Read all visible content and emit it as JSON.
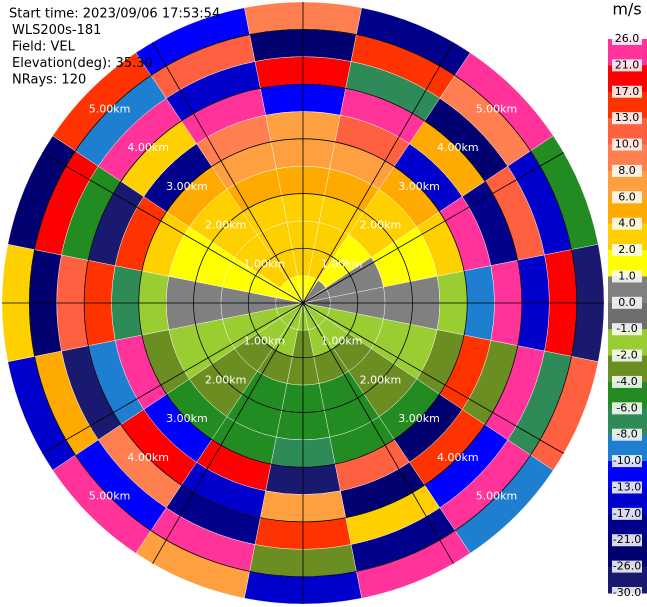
{
  "chart_data": {
    "type": "ppi",
    "header": [
      "Start time: 2023/09/06 17:53:54",
      "WLS200s-181",
      "Field: VEL",
      "Elevation(deg): 35.30",
      "NRays: 120"
    ],
    "colorbar_title": "m/s",
    "colorbar_ticks": [
      {
        "value": 26,
        "label": "26.0"
      },
      {
        "value": 21,
        "label": "21.0"
      },
      {
        "value": 17,
        "label": "17.0"
      },
      {
        "value": 13,
        "label": "13.0"
      },
      {
        "value": 10,
        "label": "10.0"
      },
      {
        "value": 8,
        "label": "8.0"
      },
      {
        "value": 6,
        "label": "6.0"
      },
      {
        "value": 4,
        "label": "4.0"
      },
      {
        "value": 2,
        "label": "2.0"
      },
      {
        "value": 1,
        "label": "1.0"
      },
      {
        "value": 0,
        "label": "0.0"
      },
      {
        "value": -1,
        "label": "-1.0"
      },
      {
        "value": -2,
        "label": "-2.0"
      },
      {
        "value": -4,
        "label": "-4.0"
      },
      {
        "value": -6,
        "label": "-6.0"
      },
      {
        "value": -8,
        "label": "-8.0"
      },
      {
        "value": -10,
        "label": "-10.0"
      },
      {
        "value": -13,
        "label": "-13.0"
      },
      {
        "value": -17,
        "label": "-17.0"
      },
      {
        "value": -21,
        "label": "-21.0"
      },
      {
        "value": -26,
        "label": "-26.0"
      },
      {
        "value": -30,
        "label": "-30.0"
      }
    ],
    "colors": [
      "#ff3399",
      "#ff0000",
      "#ff3300",
      "#ff6040",
      "#ff7f50",
      "#ffa040",
      "#ffaa00",
      "#ffd000",
      "#ffff00",
      "#808080",
      "#6e6e6e",
      "#9acd32",
      "#6b8e23",
      "#228b22",
      "#2e8b57",
      "#1e7fd0",
      "#0000ff",
      "#0000cd",
      "#00008b",
      "#000070",
      "#191970"
    ],
    "rlim": [
      0,
      5.5
    ],
    "range_bins": [
      0,
      0.5,
      1,
      1.5,
      2,
      2.5,
      3,
      3.5,
      4,
      4.5,
      5,
      5.5
    ],
    "range_rings": [
      {
        "value": 1,
        "label": "1.00km"
      },
      {
        "value": 2,
        "label": "2.00km"
      },
      {
        "value": 3,
        "label": "3.00km"
      },
      {
        "value": 4,
        "label": "4.00km"
      },
      {
        "value": 5,
        "label": "5.00km"
      }
    ],
    "field": [
      [
        1.5,
        1.5,
        0.5,
        0.5,
        -0.5,
        -1.5,
        -1.5,
        -1.5,
        -1.5,
        -1.5,
        -1.5,
        -1.5,
        0.5,
        1.5,
        1.5,
        1.5
      ],
      [
        2.5,
        2.5,
        1.5,
        0.5,
        0.5,
        -1.5,
        -1.5,
        -1.5,
        -3,
        -1.5,
        -1.5,
        -1.5,
        0.5,
        1.5,
        2.5,
        2.5
      ],
      [
        3,
        3,
        1.5,
        0.5,
        0.5,
        -1.5,
        -3,
        -3,
        -3,
        -3,
        -3,
        -1.5,
        0.5,
        1.5,
        3,
        3
      ],
      [
        3,
        3,
        3,
        1.5,
        0.5,
        -1.5,
        -3,
        -5,
        -5,
        -5,
        -3,
        -1.5,
        0.5,
        1.5,
        3,
        3
      ],
      [
        5,
        5,
        3,
        1.5,
        0.5,
        -1.5,
        -3,
        -5,
        -5,
        -5,
        -3,
        -1.5,
        0.5,
        1.5,
        3,
        5
      ],
      [
        7,
        7,
        5,
        3,
        -1.5,
        -3,
        -5,
        -5,
        -7,
        -5,
        -5,
        -3,
        -1.5,
        3,
        5,
        7
      ],
      [
        7,
        12,
        -15,
        24,
        -9,
        15,
        -23,
        11,
        -28,
        19,
        -12,
        22,
        -7,
        14,
        -19,
        9
      ],
      [
        -11,
        23,
        5,
        -18,
        27,
        -3,
        14,
        -25,
        8,
        -14,
        21,
        -8,
        17,
        -27,
        4,
        25
      ],
      [
        18,
        -6,
        -22,
        11,
        -15,
        26,
        -10,
        4,
        16,
        -20,
        9,
        -27,
        12,
        -5,
        23,
        -16
      ],
      [
        -24,
        15,
        9,
        -13,
        20,
        -7,
        25,
        -17,
        -2,
        28,
        -11,
        6,
        -21,
        19,
        -9,
        11
      ],
      [
        10,
        -19,
        27,
        -4,
        -26,
        13,
        -8,
        22,
        -14,
        7,
        24,
        -16,
        3,
        -23,
        15,
        -12
      ]
    ]
  }
}
